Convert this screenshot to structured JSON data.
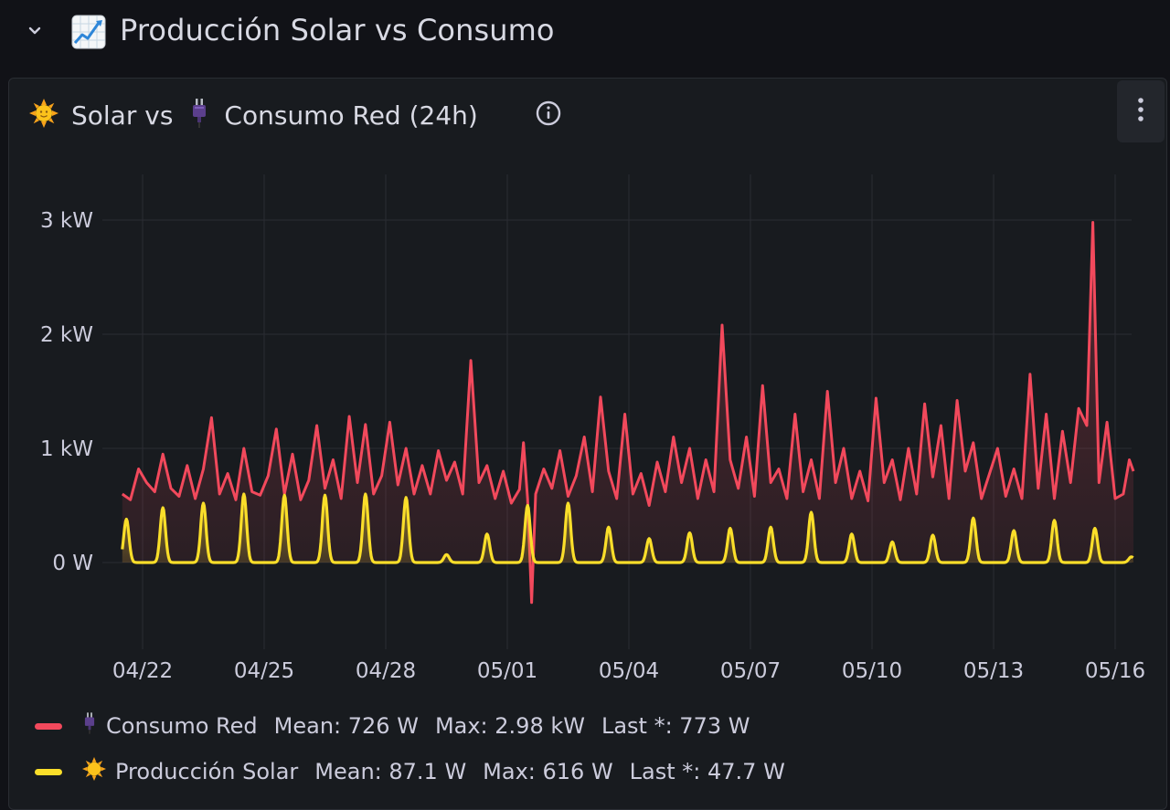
{
  "row": {
    "title": "Producción Solar vs Consumo",
    "emoji_icon": "chart-increasing-icon"
  },
  "panel": {
    "title_part1": "Solar vs",
    "title_part2": "Consumo Red (24h)",
    "sun_icon": "sun-emoji-icon",
    "plug_icon": "electric-plug-emoji-icon",
    "info_icon": "info-circle-icon",
    "menu_icon": "vertical-ellipsis-icon"
  },
  "colors": {
    "consumo": "#f2495c",
    "solar": "#fade2a",
    "background": "#181b1f",
    "grid": "#2c2f35"
  },
  "legend": [
    {
      "name": "Consumo Red",
      "icon": "electric-plug-emoji-icon",
      "color": "#f2495c",
      "mean": "Mean: 726 W",
      "max": "Max: 2.98 kW",
      "last": "Last *: 773 W"
    },
    {
      "name": "Producción Solar",
      "icon": "sun-emoji-icon",
      "color": "#fade2a",
      "mean": "Mean: 87.1 W",
      "max": "Max: 616 W",
      "last": "Last *: 47.7 W"
    }
  ],
  "chart_data": {
    "type": "line",
    "title": "Solar vs Consumo Red (24h)",
    "y_ticks": [
      "0 W",
      "1 kW",
      "2 kW",
      "3 kW"
    ],
    "y_tick_values": [
      0,
      1000,
      2000,
      3000
    ],
    "ylim": [
      -700,
      3600
    ],
    "x_ticks": [
      "04/22",
      "04/25",
      "04/28",
      "05/01",
      "05/04",
      "05/07",
      "05/10",
      "05/13",
      "05/16"
    ],
    "x_tick_days": [
      1,
      4,
      7,
      10,
      13,
      16,
      19,
      22,
      25
    ],
    "x_range_days": [
      0.5,
      25.8
    ],
    "grid": true,
    "legend_position": "bottom",
    "series": [
      {
        "name": "Consumo Red",
        "color": "#f2495c",
        "fill": true,
        "points": [
          [
            0.5,
            600
          ],
          [
            0.7,
            550
          ],
          [
            0.9,
            820
          ],
          [
            1.1,
            700
          ],
          [
            1.3,
            620
          ],
          [
            1.5,
            950
          ],
          [
            1.7,
            650
          ],
          [
            1.9,
            580
          ],
          [
            2.1,
            850
          ],
          [
            2.3,
            560
          ],
          [
            2.5,
            820
          ],
          [
            2.7,
            1270
          ],
          [
            2.9,
            600
          ],
          [
            3.1,
            780
          ],
          [
            3.3,
            550
          ],
          [
            3.5,
            1000
          ],
          [
            3.7,
            620
          ],
          [
            3.9,
            590
          ],
          [
            4.1,
            760
          ],
          [
            4.3,
            1170
          ],
          [
            4.5,
            600
          ],
          [
            4.7,
            950
          ],
          [
            4.9,
            550
          ],
          [
            5.1,
            720
          ],
          [
            5.3,
            1200
          ],
          [
            5.5,
            650
          ],
          [
            5.7,
            900
          ],
          [
            5.9,
            560
          ],
          [
            6.1,
            1280
          ],
          [
            6.3,
            700
          ],
          [
            6.5,
            1210
          ],
          [
            6.7,
            600
          ],
          [
            6.9,
            760
          ],
          [
            7.1,
            1230
          ],
          [
            7.3,
            680
          ],
          [
            7.5,
            1000
          ],
          [
            7.7,
            600
          ],
          [
            7.9,
            850
          ],
          [
            8.1,
            600
          ],
          [
            8.3,
            980
          ],
          [
            8.5,
            720
          ],
          [
            8.7,
            880
          ],
          [
            8.9,
            600
          ],
          [
            9.1,
            1770
          ],
          [
            9.3,
            700
          ],
          [
            9.5,
            850
          ],
          [
            9.7,
            560
          ],
          [
            9.9,
            800
          ],
          [
            10.1,
            520
          ],
          [
            10.3,
            640
          ],
          [
            10.4,
            1050
          ],
          [
            10.5,
            560
          ],
          [
            10.6,
            -350
          ],
          [
            10.7,
            600
          ],
          [
            10.9,
            820
          ],
          [
            11.1,
            650
          ],
          [
            11.3,
            980
          ],
          [
            11.5,
            580
          ],
          [
            11.7,
            760
          ],
          [
            11.9,
            1100
          ],
          [
            12.1,
            620
          ],
          [
            12.3,
            1450
          ],
          [
            12.5,
            800
          ],
          [
            12.7,
            560
          ],
          [
            12.9,
            1300
          ],
          [
            13.1,
            600
          ],
          [
            13.3,
            780
          ],
          [
            13.5,
            500
          ],
          [
            13.7,
            880
          ],
          [
            13.9,
            620
          ],
          [
            14.1,
            1100
          ],
          [
            14.3,
            700
          ],
          [
            14.5,
            1000
          ],
          [
            14.7,
            560
          ],
          [
            14.9,
            900
          ],
          [
            15.1,
            620
          ],
          [
            15.3,
            2080
          ],
          [
            15.5,
            900
          ],
          [
            15.7,
            650
          ],
          [
            15.9,
            1100
          ],
          [
            16.1,
            580
          ],
          [
            16.3,
            1550
          ],
          [
            16.5,
            700
          ],
          [
            16.7,
            820
          ],
          [
            16.9,
            560
          ],
          [
            17.1,
            1300
          ],
          [
            17.3,
            620
          ],
          [
            17.5,
            900
          ],
          [
            17.7,
            560
          ],
          [
            17.9,
            1500
          ],
          [
            18.1,
            700
          ],
          [
            18.3,
            1000
          ],
          [
            18.5,
            560
          ],
          [
            18.7,
            800
          ],
          [
            18.9,
            540
          ],
          [
            19.1,
            1440
          ],
          [
            19.3,
            700
          ],
          [
            19.5,
            900
          ],
          [
            19.7,
            550
          ],
          [
            19.9,
            1000
          ],
          [
            20.1,
            600
          ],
          [
            20.3,
            1390
          ],
          [
            20.5,
            750
          ],
          [
            20.7,
            1200
          ],
          [
            20.9,
            560
          ],
          [
            21.1,
            1420
          ],
          [
            21.3,
            800
          ],
          [
            21.5,
            1050
          ],
          [
            21.7,
            560
          ],
          [
            21.9,
            780
          ],
          [
            22.1,
            1000
          ],
          [
            22.3,
            580
          ],
          [
            22.5,
            820
          ],
          [
            22.7,
            560
          ],
          [
            22.9,
            1650
          ],
          [
            23.1,
            650
          ],
          [
            23.3,
            1300
          ],
          [
            23.5,
            560
          ],
          [
            23.7,
            1150
          ],
          [
            23.9,
            700
          ],
          [
            24.1,
            1350
          ],
          [
            24.3,
            1200
          ],
          [
            24.45,
            2980
          ],
          [
            24.6,
            700
          ],
          [
            24.8,
            1230
          ],
          [
            25.0,
            560
          ],
          [
            25.2,
            600
          ],
          [
            25.35,
            900
          ],
          [
            25.45,
            800
          ]
        ]
      },
      {
        "name": "Producción Solar",
        "color": "#fade2a",
        "fill": true,
        "peaks": [
          [
            0.6,
            380
          ],
          [
            1.5,
            480
          ],
          [
            2.5,
            520
          ],
          [
            3.5,
            600
          ],
          [
            4.5,
            590
          ],
          [
            5.5,
            590
          ],
          [
            6.5,
            600
          ],
          [
            7.5,
            570
          ],
          [
            8.5,
            70
          ],
          [
            9.5,
            250
          ],
          [
            10.5,
            500
          ],
          [
            11.5,
            520
          ],
          [
            12.5,
            310
          ],
          [
            13.5,
            210
          ],
          [
            14.5,
            260
          ],
          [
            15.5,
            300
          ],
          [
            16.5,
            310
          ],
          [
            17.5,
            440
          ],
          [
            18.5,
            250
          ],
          [
            19.5,
            180
          ],
          [
            20.5,
            240
          ],
          [
            21.5,
            390
          ],
          [
            22.5,
            280
          ],
          [
            23.5,
            370
          ],
          [
            24.5,
            300
          ],
          [
            25.4,
            50
          ]
        ],
        "last": [
          25.45,
          47.7
        ]
      }
    ]
  }
}
